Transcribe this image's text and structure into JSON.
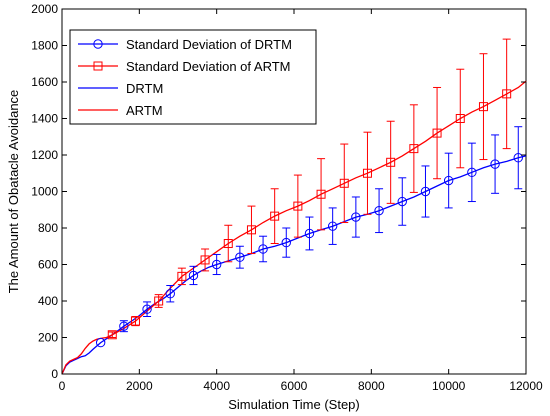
{
  "chart_data": {
    "type": "line",
    "title": "",
    "xlabel": "Simulation Time (Step)",
    "ylabel": "The Amount of Obatacle Avoidance",
    "xlim": [
      0,
      12000
    ],
    "ylim": [
      0,
      2000
    ],
    "xticks": [
      0,
      2000,
      4000,
      6000,
      8000,
      10000,
      12000
    ],
    "yticks": [
      0,
      200,
      400,
      600,
      800,
      1000,
      1200,
      1400,
      1600,
      1800,
      2000
    ],
    "grid": false,
    "legend_position": "top-left",
    "series": [
      {
        "name": "Standard Deviation of DRTM",
        "color": "#0000ff",
        "marker": "circle",
        "points": [
          {
            "x": 1000,
            "y": 172,
            "err": 0
          },
          {
            "x": 1600,
            "y": 262,
            "err": 30
          },
          {
            "x": 2200,
            "y": 355,
            "err": 40
          },
          {
            "x": 2800,
            "y": 440,
            "err": 45
          },
          {
            "x": 3400,
            "y": 540,
            "err": 50
          },
          {
            "x": 4000,
            "y": 600,
            "err": 55
          },
          {
            "x": 4600,
            "y": 640,
            "err": 60
          },
          {
            "x": 5200,
            "y": 685,
            "err": 70
          },
          {
            "x": 5800,
            "y": 720,
            "err": 80
          },
          {
            "x": 6400,
            "y": 770,
            "err": 90
          },
          {
            "x": 7000,
            "y": 810,
            "err": 100
          },
          {
            "x": 7600,
            "y": 860,
            "err": 110
          },
          {
            "x": 8200,
            "y": 895,
            "err": 120
          },
          {
            "x": 8800,
            "y": 945,
            "err": 130
          },
          {
            "x": 9400,
            "y": 1000,
            "err": 140
          },
          {
            "x": 10000,
            "y": 1060,
            "err": 150
          },
          {
            "x": 10600,
            "y": 1105,
            "err": 160
          },
          {
            "x": 11200,
            "y": 1150,
            "err": 160
          },
          {
            "x": 11800,
            "y": 1185,
            "err": 170
          }
        ]
      },
      {
        "name": "Standard Deviation of ARTM",
        "color": "#ff0000",
        "marker": "square",
        "points": [
          {
            "x": 1300,
            "y": 215,
            "err": 15
          },
          {
            "x": 1900,
            "y": 290,
            "err": 25
          },
          {
            "x": 2500,
            "y": 400,
            "err": 35
          },
          {
            "x": 3100,
            "y": 535,
            "err": 45
          },
          {
            "x": 3700,
            "y": 625,
            "err": 60
          },
          {
            "x": 4300,
            "y": 715,
            "err": 100
          },
          {
            "x": 4900,
            "y": 790,
            "err": 130
          },
          {
            "x": 5500,
            "y": 865,
            "err": 150
          },
          {
            "x": 6100,
            "y": 920,
            "err": 170
          },
          {
            "x": 6700,
            "y": 985,
            "err": 195
          },
          {
            "x": 7300,
            "y": 1045,
            "err": 215
          },
          {
            "x": 7900,
            "y": 1100,
            "err": 225
          },
          {
            "x": 8500,
            "y": 1160,
            "err": 225
          },
          {
            "x": 9100,
            "y": 1235,
            "err": 240
          },
          {
            "x": 9700,
            "y": 1320,
            "err": 250
          },
          {
            "x": 10300,
            "y": 1400,
            "err": 270
          },
          {
            "x": 10900,
            "y": 1465,
            "err": 290
          },
          {
            "x": 11500,
            "y": 1535,
            "err": 300
          }
        ]
      },
      {
        "name": "DRTM",
        "color": "#0000ff",
        "marker": "none",
        "x": [
          0,
          100,
          200,
          300,
          400,
          500,
          600,
          700,
          800,
          1000,
          1200,
          1400,
          1600,
          1800,
          2000,
          2200,
          2400,
          2600,
          2800,
          3000,
          3200,
          3400,
          3600,
          3800,
          4000,
          4300,
          4600,
          4900,
          5200,
          5500,
          5800,
          6100,
          6400,
          6700,
          7000,
          7300,
          7600,
          7900,
          8200,
          8500,
          8800,
          9100,
          9400,
          9700,
          10000,
          10300,
          10600,
          10900,
          11200,
          11500,
          11800,
          12000
        ],
        "y": [
          0,
          45,
          65,
          75,
          85,
          95,
          100,
          115,
          135,
          172,
          200,
          230,
          262,
          290,
          320,
          355,
          385,
          410,
          440,
          475,
          510,
          540,
          565,
          585,
          600,
          620,
          640,
          660,
          685,
          700,
          720,
          745,
          770,
          790,
          810,
          835,
          860,
          875,
          895,
          920,
          945,
          970,
          1000,
          1030,
          1060,
          1080,
          1105,
          1130,
          1150,
          1165,
          1185,
          1195
        ]
      },
      {
        "name": "ARTM",
        "color": "#ff0000",
        "marker": "none",
        "x": [
          0,
          100,
          200,
          300,
          400,
          500,
          600,
          700,
          800,
          900,
          1000,
          1150,
          1300,
          1600,
          1900,
          2200,
          2500,
          2800,
          3100,
          3400,
          3700,
          4000,
          4300,
          4600,
          4900,
          5200,
          5500,
          5800,
          6100,
          6400,
          6700,
          7000,
          7300,
          7600,
          7900,
          8200,
          8500,
          8800,
          9100,
          9400,
          9700,
          10000,
          10300,
          10600,
          10900,
          11200,
          11500,
          11800,
          12000
        ],
        "y": [
          0,
          50,
          70,
          80,
          90,
          110,
          140,
          165,
          180,
          190,
          195,
          200,
          215,
          250,
          290,
          345,
          400,
          470,
          535,
          580,
          625,
          670,
          715,
          755,
          790,
          830,
          865,
          895,
          920,
          950,
          985,
          1015,
          1045,
          1075,
          1100,
          1130,
          1160,
          1195,
          1235,
          1275,
          1320,
          1360,
          1400,
          1435,
          1465,
          1500,
          1535,
          1570,
          1605
        ]
      }
    ]
  }
}
